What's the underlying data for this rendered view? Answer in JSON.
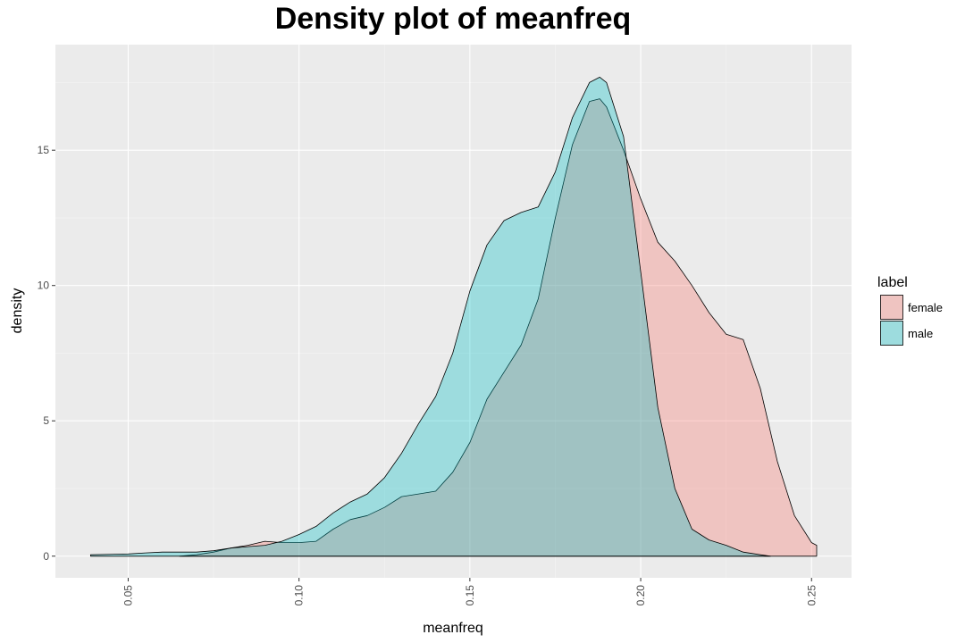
{
  "chart_data": {
    "type": "area",
    "title": "Density plot of meanfreq",
    "xlabel": "meanfreq",
    "ylabel": "density",
    "xlim": [
      0.0287,
      0.2617
    ],
    "ylim": [
      -0.8,
      18.9
    ],
    "x_ticks": [
      0.05,
      0.1,
      0.15,
      0.2,
      0.25
    ],
    "x_tick_labels": [
      "0.05",
      "0.10",
      "0.15",
      "0.20",
      "0.25"
    ],
    "y_ticks": [
      0,
      5,
      10,
      15
    ],
    "y_tick_labels": [
      "0",
      "5",
      "10",
      "15"
    ],
    "grid": true,
    "legend": {
      "title": "label",
      "position": "right"
    },
    "series": [
      {
        "name": "female",
        "color": "#F8766D",
        "x": [
          0.065,
          0.07,
          0.075,
          0.08,
          0.085,
          0.09,
          0.095,
          0.1,
          0.105,
          0.11,
          0.115,
          0.12,
          0.125,
          0.13,
          0.135,
          0.14,
          0.145,
          0.15,
          0.155,
          0.16,
          0.165,
          0.17,
          0.175,
          0.18,
          0.185,
          0.188,
          0.19,
          0.195,
          0.2,
          0.205,
          0.21,
          0.215,
          0.22,
          0.225,
          0.23,
          0.235,
          0.24,
          0.245,
          0.25,
          0.2515
        ],
        "y": [
          0.0,
          0.05,
          0.15,
          0.3,
          0.4,
          0.55,
          0.5,
          0.5,
          0.55,
          1.0,
          1.35,
          1.5,
          1.8,
          2.2,
          2.3,
          2.4,
          3.1,
          4.2,
          5.8,
          6.8,
          7.8,
          9.5,
          12.5,
          15.2,
          16.8,
          16.9,
          16.6,
          15.0,
          13.2,
          11.6,
          10.9,
          10.0,
          9.0,
          8.2,
          8.0,
          6.2,
          3.5,
          1.5,
          0.5,
          0.4
        ]
      },
      {
        "name": "male",
        "color": "#00BFC4",
        "x": [
          0.039,
          0.05,
          0.055,
          0.06,
          0.07,
          0.075,
          0.08,
          0.085,
          0.09,
          0.095,
          0.1,
          0.105,
          0.11,
          0.115,
          0.12,
          0.125,
          0.13,
          0.135,
          0.14,
          0.145,
          0.15,
          0.155,
          0.16,
          0.165,
          0.17,
          0.175,
          0.18,
          0.185,
          0.188,
          0.19,
          0.195,
          0.2,
          0.205,
          0.21,
          0.215,
          0.22,
          0.225,
          0.23,
          0.235,
          0.238
        ],
        "y": [
          0.05,
          0.08,
          0.12,
          0.15,
          0.15,
          0.2,
          0.3,
          0.35,
          0.4,
          0.55,
          0.8,
          1.1,
          1.6,
          2.0,
          2.3,
          2.9,
          3.8,
          4.9,
          5.9,
          7.5,
          9.8,
          11.5,
          12.4,
          12.7,
          12.9,
          14.2,
          16.2,
          17.5,
          17.7,
          17.5,
          15.5,
          10.5,
          5.5,
          2.5,
          1.0,
          0.6,
          0.4,
          0.15,
          0.05,
          0.0
        ]
      }
    ]
  }
}
